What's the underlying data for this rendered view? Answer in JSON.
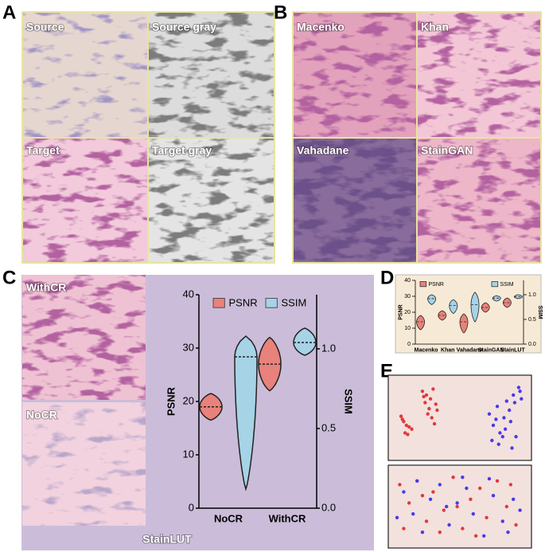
{
  "panel_labels": [
    "A",
    "B",
    "C",
    "D",
    "E"
  ],
  "panel_a": {
    "captions": [
      "Source",
      "Source gray",
      "Target",
      "Target gray"
    ]
  },
  "panel_b": {
    "captions": [
      "Macenko",
      "Khan",
      "Vahadane",
      "StainGAN"
    ]
  },
  "panel_c": {
    "captions": [
      "WithCR",
      "NoCR"
    ],
    "footer": "StainLUT"
  },
  "chart_data": [
    {
      "type": "violin",
      "categories": [
        "NoCR",
        "WithCR"
      ],
      "ylabel": "PSNR",
      "y2label": "SSIM",
      "ylim": [
        0,
        40
      ],
      "yticks": [
        0,
        10,
        20,
        30,
        40
      ],
      "y2lim": [
        0,
        1.34
      ],
      "y2ticks": [
        {
          "value": 0,
          "label": "0.0"
        },
        {
          "value": 0.5,
          "label": "0.5"
        },
        {
          "value": 1,
          "label": "1.0"
        }
      ],
      "legend": "top",
      "series": [
        {
          "name": "PSNR",
          "color": "#e8827a",
          "min": [
            16.5,
            22
          ],
          "median": [
            19,
            27
          ],
          "max": [
            21.5,
            32
          ]
        },
        {
          "name": "SSIM",
          "color": "#a6d3e6",
          "axis": "y2",
          "min": [
            0.12,
            0.96
          ],
          "median": [
            0.95,
            1.04
          ],
          "max": [
            1.08,
            1.13
          ]
        }
      ]
    },
    {
      "type": "violin",
      "categories": [
        "Macenko",
        "Khan",
        "Vahadane",
        "StainGAN",
        "StainLUT"
      ],
      "ylabel": "PSNR",
      "y2label": "SSIM",
      "ylim": [
        0,
        40
      ],
      "yticks": [
        0,
        10,
        20,
        30,
        40
      ],
      "y2lim": [
        0,
        1.29
      ],
      "y2ticks": [
        {
          "value": 0,
          "label": "0.0"
        },
        {
          "value": 0.5,
          "label": "0.5"
        },
        {
          "value": 1,
          "label": "1.0"
        }
      ],
      "legend": "top",
      "series": [
        {
          "name": "PSNR",
          "color": "#e8827a",
          "min": [
            9,
            15,
            7,
            20,
            23
          ],
          "median": [
            14,
            18,
            14,
            23,
            26
          ],
          "max": [
            18,
            21,
            19,
            26,
            29
          ]
        },
        {
          "name": "SSIM",
          "color": "#a6d3e6",
          "axis": "y2",
          "min": [
            0.8,
            0.62,
            0.45,
            0.87,
            0.92
          ],
          "median": [
            0.92,
            0.78,
            0.8,
            0.93,
            0.96
          ],
          "max": [
            1.0,
            0.9,
            1.05,
            0.98,
            1.0
          ]
        }
      ]
    },
    {
      "type": "scatter",
      "xlim": [
        0,
        100
      ],
      "ylim": [
        0,
        100
      ],
      "series": [
        {
          "color": "#e03a3a",
          "x": [
            6,
            8,
            10,
            12,
            9,
            14,
            7,
            11,
            22,
            25,
            28,
            30,
            24,
            27,
            32,
            26,
            29,
            33,
            23,
            31
          ],
          "values": [
            52,
            45,
            40,
            38,
            30,
            35,
            48,
            28,
            85,
            80,
            75,
            88,
            70,
            62,
            68,
            55,
            50,
            60,
            78,
            42
          ]
        },
        {
          "color": "#4a3ae8",
          "x": [
            72,
            75,
            78,
            80,
            83,
            85,
            88,
            90,
            92,
            95,
            74,
            79,
            84,
            87,
            91,
            94,
            77,
            82,
            89,
            96
          ],
          "values": [
            55,
            40,
            65,
            30,
            50,
            72,
            45,
            80,
            25,
            85,
            20,
            15,
            35,
            60,
            70,
            90,
            48,
            25,
            10,
            75
          ]
        }
      ]
    },
    {
      "type": "scatter",
      "xlim": [
        0,
        100
      ],
      "ylim": [
        0,
        100
      ],
      "series": [
        {
          "color": "#e03a3a",
          "x": [
            5,
            12,
            18,
            25,
            30,
            38,
            45,
            52,
            58,
            65,
            70,
            78,
            85,
            92,
            8,
            22,
            35,
            48,
            62,
            88
          ],
          "values": [
            80,
            55,
            85,
            30,
            70,
            45,
            90,
            20,
            60,
            75,
            35,
            85,
            50,
            25,
            20,
            65,
            15,
            50,
            10,
            80
          ]
        },
        {
          "color": "#4a3ae8",
          "x": [
            8,
            15,
            22,
            28,
            35,
            42,
            48,
            55,
            60,
            68,
            75,
            82,
            90,
            95,
            18,
            40,
            52,
            72,
            86,
            3
          ],
          "values": [
            70,
            40,
            15,
            60,
            80,
            25,
            55,
            75,
            40,
            10,
            65,
            30,
            60,
            45,
            85,
            50,
            90,
            88,
            15,
            35
          ]
        }
      ]
    }
  ]
}
